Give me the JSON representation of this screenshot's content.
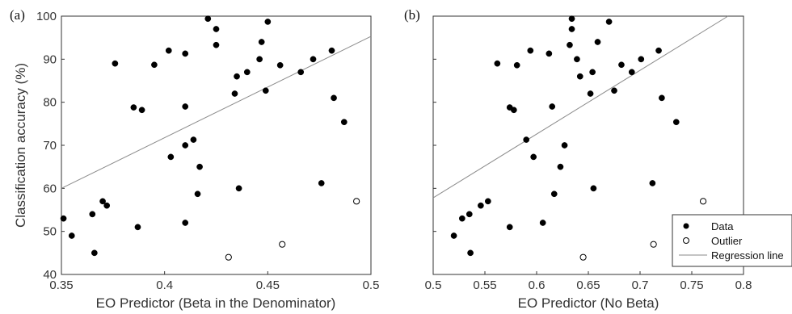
{
  "chart_data": [
    {
      "type": "scatter",
      "panel_label": "(a)",
      "xlabel": "EO Predictor (Beta in the Denominator)",
      "ylabel": "Classification accuracy (%)",
      "xlim": [
        0.35,
        0.5
      ],
      "ylim": [
        40,
        100
      ],
      "xticks": [
        "0.35",
        "0.4",
        "0.45",
        "0.5"
      ],
      "yticks": [
        "40",
        "50",
        "60",
        "70",
        "80",
        "90",
        "100"
      ],
      "grid": false,
      "series": [
        {
          "name": "Data",
          "marker": "filled",
          "points": [
            [
              0.351,
              53
            ],
            [
              0.355,
              49
            ],
            [
              0.365,
              54
            ],
            [
              0.366,
              45
            ],
            [
              0.37,
              57
            ],
            [
              0.372,
              56
            ],
            [
              0.376,
              89
            ],
            [
              0.385,
              78.8
            ],
            [
              0.387,
              51
            ],
            [
              0.389,
              78.2
            ],
            [
              0.395,
              88.7
            ],
            [
              0.402,
              92
            ],
            [
              0.403,
              67.3
            ],
            [
              0.41,
              91.3
            ],
            [
              0.41,
              79
            ],
            [
              0.41,
              70
            ],
            [
              0.41,
              52
            ],
            [
              0.414,
              71.3
            ],
            [
              0.416,
              58.7
            ],
            [
              0.417,
              65
            ],
            [
              0.421,
              99.4
            ],
            [
              0.425,
              97
            ],
            [
              0.425,
              93.3
            ],
            [
              0.434,
              82
            ],
            [
              0.435,
              86
            ],
            [
              0.436,
              60
            ],
            [
              0.44,
              87
            ],
            [
              0.446,
              90
            ],
            [
              0.447,
              94
            ],
            [
              0.449,
              82.7
            ],
            [
              0.45,
              98.7
            ],
            [
              0.456,
              88.6
            ],
            [
              0.466,
              87
            ],
            [
              0.472,
              90
            ],
            [
              0.476,
              61.2
            ],
            [
              0.481,
              92
            ],
            [
              0.482,
              81
            ],
            [
              0.487,
              75.4
            ]
          ]
        },
        {
          "name": "Outlier",
          "marker": "open",
          "points": [
            [
              0.431,
              44
            ],
            [
              0.457,
              47
            ],
            [
              0.493,
              57
            ]
          ]
        }
      ],
      "regression_line": [
        [
          0.35,
          60
        ],
        [
          0.5,
          95.3
        ]
      ]
    },
    {
      "type": "scatter",
      "panel_label": "(b)",
      "xlabel": "EO Predictor (No Beta)",
      "ylabel": "",
      "xlim": [
        0.5,
        0.8
      ],
      "ylim": [
        40,
        100
      ],
      "xticks": [
        "0.5",
        "0.55",
        "0.6",
        "0.65",
        "0.7",
        "0.75",
        "0.8"
      ],
      "grid": false,
      "series": [
        {
          "name": "Data",
          "marker": "filled",
          "points": [
            [
              0.52,
              49
            ],
            [
              0.528,
              53
            ],
            [
              0.535,
              54
            ],
            [
              0.536,
              45
            ],
            [
              0.546,
              56
            ],
            [
              0.553,
              57
            ],
            [
              0.562,
              89
            ],
            [
              0.574,
              78.8
            ],
            [
              0.574,
              51
            ],
            [
              0.578,
              78.2
            ],
            [
              0.581,
              88.6
            ],
            [
              0.59,
              71.3
            ],
            [
              0.594,
              92
            ],
            [
              0.597,
              67.3
            ],
            [
              0.606,
              52
            ],
            [
              0.612,
              91.3
            ],
            [
              0.615,
              79
            ],
            [
              0.617,
              58.7
            ],
            [
              0.623,
              65
            ],
            [
              0.627,
              70
            ],
            [
              0.632,
              93.3
            ],
            [
              0.634,
              99.4
            ],
            [
              0.634,
              97
            ],
            [
              0.639,
              90
            ],
            [
              0.642,
              86
            ],
            [
              0.652,
              82
            ],
            [
              0.654,
              87
            ],
            [
              0.655,
              60
            ],
            [
              0.659,
              94
            ],
            [
              0.67,
              98.7
            ],
            [
              0.675,
              82.7
            ],
            [
              0.682,
              88.7
            ],
            [
              0.692,
              87
            ],
            [
              0.701,
              90
            ],
            [
              0.712,
              61.2
            ],
            [
              0.718,
              92
            ],
            [
              0.721,
              81
            ],
            [
              0.735,
              75.4
            ]
          ]
        },
        {
          "name": "Outlier",
          "marker": "open",
          "points": [
            [
              0.645,
              44
            ],
            [
              0.713,
              47
            ],
            [
              0.761,
              57
            ]
          ]
        }
      ],
      "regression_line": [
        [
          0.5,
          57.8
        ],
        [
          0.785,
          100
        ]
      ],
      "legend": {
        "position": "bottom-right",
        "entries": [
          {
            "label": "Data",
            "marker": "filled"
          },
          {
            "label": "Outlier",
            "marker": "open"
          },
          {
            "label": "Regression line",
            "marker": "line"
          }
        ]
      }
    }
  ]
}
